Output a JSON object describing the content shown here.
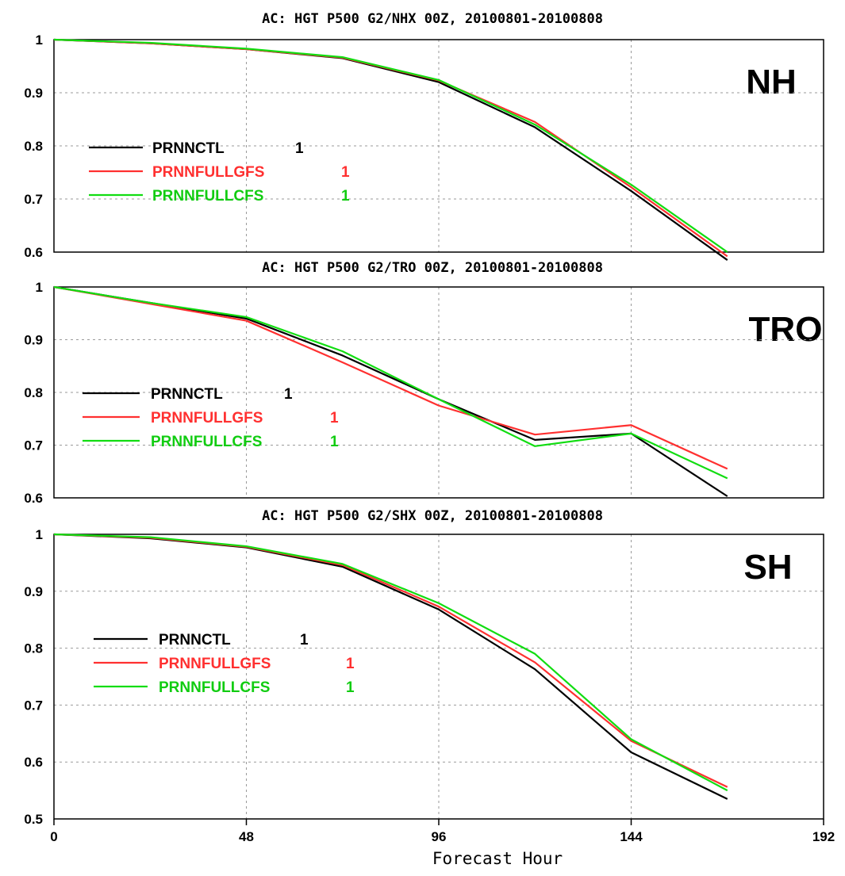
{
  "chart_data": [
    {
      "type": "line",
      "title": "AC: HGT P500 G2/NHX 00Z, 20100801-20100808",
      "region_label": "NH",
      "ylim": [
        0.6,
        1.0
      ],
      "yticks": [
        1,
        0.9,
        0.8,
        0.7,
        0.6
      ],
      "xlim": [
        0,
        192
      ],
      "x": [
        0,
        24,
        48,
        72,
        96,
        120,
        144,
        168
      ],
      "grid": true,
      "legend_placement": "left",
      "series": [
        {
          "name": "PRNNCTL",
          "suffix": "1",
          "color": "#000000",
          "values": [
            1.0,
            0.993,
            0.982,
            0.965,
            0.92,
            0.835,
            0.715,
            0.585
          ]
        },
        {
          "name": "PRNNFULLGFS",
          "suffix": "1",
          "color": "#ff3030",
          "values": [
            1.0,
            0.993,
            0.982,
            0.966,
            0.923,
            0.845,
            0.722,
            0.592
          ]
        },
        {
          "name": "PRNNFULLCFS",
          "suffix": "1",
          "color": "#11dd11",
          "values": [
            1.0,
            0.994,
            0.983,
            0.967,
            0.924,
            0.84,
            0.727,
            0.6
          ]
        }
      ]
    },
    {
      "type": "line",
      "title": "AC: HGT P500 G2/TRO 00Z, 20100801-20100808",
      "region_label": "TRO",
      "ylim": [
        0.6,
        1.0
      ],
      "yticks": [
        1,
        0.9,
        0.8,
        0.7,
        0.6
      ],
      "xlim": [
        0,
        192
      ],
      "x": [
        0,
        24,
        48,
        72,
        96,
        120,
        144,
        168
      ],
      "grid": true,
      "legend_placement": "left",
      "series": [
        {
          "name": "PRNNCTL",
          "suffix": "1",
          "color": "#000000",
          "values": [
            1.0,
            0.97,
            0.94,
            0.87,
            0.787,
            0.71,
            0.722,
            0.603
          ]
        },
        {
          "name": "PRNNFULLGFS",
          "suffix": "1",
          "color": "#ff3030",
          "values": [
            1.0,
            0.968,
            0.936,
            0.857,
            0.775,
            0.72,
            0.738,
            0.655
          ]
        },
        {
          "name": "PRNNFULLCFS",
          "suffix": "1",
          "color": "#11dd11",
          "values": [
            1.0,
            0.97,
            0.943,
            0.878,
            0.787,
            0.698,
            0.722,
            0.637
          ]
        }
      ]
    },
    {
      "type": "line",
      "title": "AC: HGT P500 G2/SHX 00Z, 20100801-20100808",
      "region_label": "SH",
      "ylim": [
        0.5,
        1.0
      ],
      "yticks": [
        1,
        0.9,
        0.8,
        0.7,
        0.6,
        0.5
      ],
      "xlim": [
        0,
        192
      ],
      "xticks": [
        0,
        48,
        96,
        144,
        192
      ],
      "x": [
        0,
        24,
        48,
        72,
        96,
        120,
        144,
        168
      ],
      "xlabel": "Forecast Hour",
      "grid": true,
      "legend_placement": "left",
      "series": [
        {
          "name": "PRNNCTL",
          "suffix": "1",
          "color": "#000000",
          "values": [
            1.0,
            0.993,
            0.977,
            0.943,
            0.868,
            0.763,
            0.617,
            0.535
          ]
        },
        {
          "name": "PRNNFULLGFS",
          "suffix": "1",
          "color": "#ff3030",
          "values": [
            1.0,
            0.994,
            0.978,
            0.946,
            0.873,
            0.775,
            0.637,
            0.556
          ]
        },
        {
          "name": "PRNNFULLCFS",
          "suffix": "1",
          "color": "#11dd11",
          "values": [
            1.0,
            0.995,
            0.979,
            0.948,
            0.879,
            0.79,
            0.64,
            0.55
          ]
        }
      ]
    }
  ]
}
